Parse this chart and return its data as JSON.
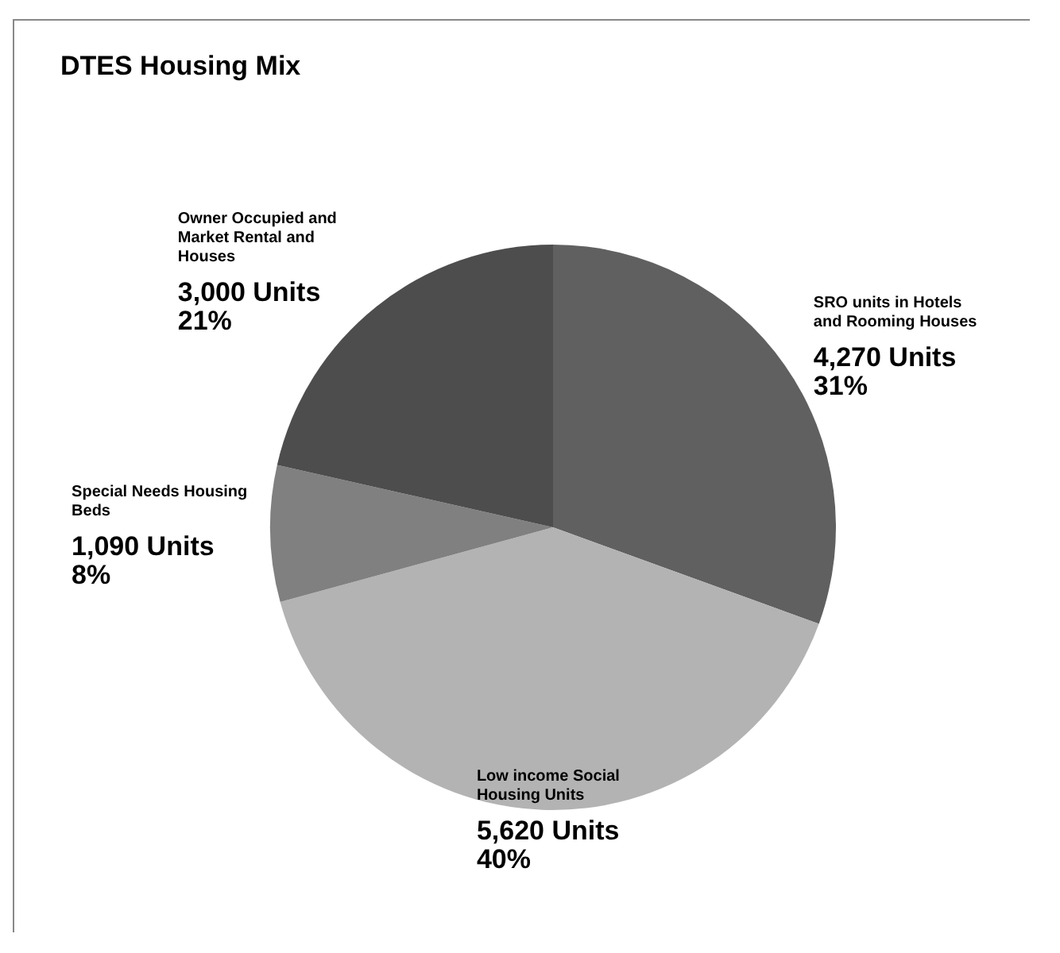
{
  "chart_data": {
    "type": "pie",
    "title": "DTES Housing Mix",
    "categories": [
      "SRO units in Hotels and Rooming Houses",
      "Low income Social Housing Units",
      "Special Needs Housing Beds",
      "Owner Occupied and Market Rental and Houses"
    ],
    "values": [
      4270,
      5620,
      1090,
      3000
    ],
    "colors": [
      "#606060",
      "#b3b3b3",
      "#808080",
      "#4d4d4d"
    ],
    "value_labels": [
      "4,270 Units\n31%",
      "5,620 Units\n40%",
      "1,090 Units\n8%",
      "3,000 Units\n21%"
    ]
  }
}
